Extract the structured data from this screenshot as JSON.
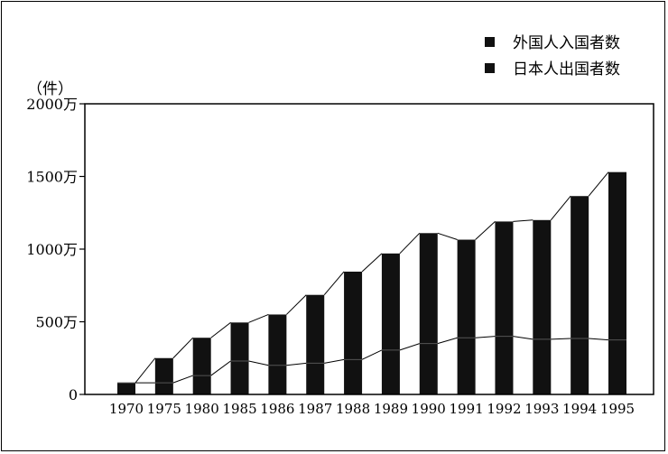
{
  "chart_data": {
    "type": "bar",
    "title": "",
    "unit_label": "（件）",
    "xlabel": "",
    "ylabel": "",
    "ylim": [
      0,
      2000
    ],
    "y_ticks": [
      {
        "value": 0,
        "label": "0"
      },
      {
        "value": 500,
        "label": "500万"
      },
      {
        "value": 1000,
        "label": "1000万"
      },
      {
        "value": 1500,
        "label": "1500万"
      },
      {
        "value": 2000,
        "label": "2000万"
      }
    ],
    "categories": [
      "1970",
      "1975",
      "1980",
      "1985",
      "1986",
      "1987",
      "1988",
      "1989",
      "1990",
      "1991",
      "1992",
      "1993",
      "1994",
      "1995"
    ],
    "series": [
      {
        "name": "外国人入国者数",
        "values": [
          80,
          80,
          130,
          230,
          200,
          215,
          240,
          305,
          350,
          390,
          400,
          380,
          385,
          375
        ]
      },
      {
        "name": "日本人出国者数",
        "values": [
          80,
          250,
          390,
          495,
          550,
          685,
          845,
          970,
          1110,
          1065,
          1190,
          1200,
          1365,
          1530
        ]
      }
    ],
    "legend_position": "top-right",
    "grid": false
  }
}
